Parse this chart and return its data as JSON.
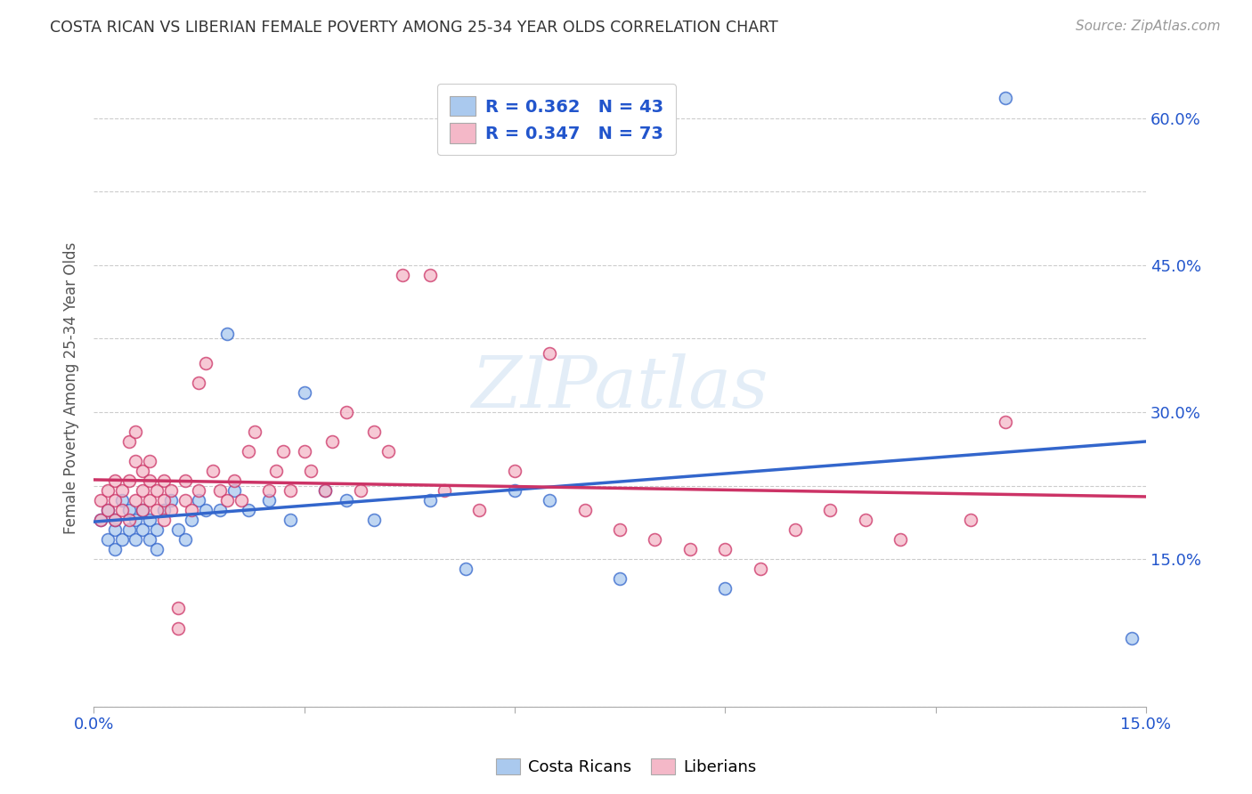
{
  "title": "COSTA RICAN VS LIBERIAN FEMALE POVERTY AMONG 25-34 YEAR OLDS CORRELATION CHART",
  "source": "Source: ZipAtlas.com",
  "ylabel": "Female Poverty Among 25-34 Year Olds",
  "xlim": [
    0.0,
    0.15
  ],
  "ylim": [
    0.0,
    0.65
  ],
  "xtick_pos": [
    0.0,
    0.03,
    0.06,
    0.09,
    0.12,
    0.15
  ],
  "xtick_labels": [
    "0.0%",
    "",
    "",
    "",
    "",
    "15.0%"
  ],
  "ytick_pos": [
    0.0,
    0.15,
    0.225,
    0.3,
    0.375,
    0.45,
    0.525,
    0.6
  ],
  "ytick_labels_right": [
    "",
    "15.0%",
    "",
    "30.0%",
    "",
    "45.0%",
    "",
    "60.0%"
  ],
  "grid_color": "#cccccc",
  "background_color": "#ffffff",
  "costa_rican_color": "#aac9ee",
  "liberian_color": "#f4b8c8",
  "costa_rican_line_color": "#3366cc",
  "liberian_line_color": "#cc3366",
  "legend_label_1": "R = 0.362   N = 43",
  "legend_label_2": "R = 0.347   N = 73",
  "legend_text_color": "#2255cc",
  "watermark": "ZIPatlas",
  "cr_x": [
    0.001,
    0.002,
    0.002,
    0.003,
    0.003,
    0.003,
    0.004,
    0.004,
    0.005,
    0.005,
    0.006,
    0.006,
    0.007,
    0.007,
    0.008,
    0.008,
    0.009,
    0.009,
    0.01,
    0.011,
    0.012,
    0.013,
    0.014,
    0.015,
    0.016,
    0.018,
    0.019,
    0.02,
    0.022,
    0.025,
    0.028,
    0.03,
    0.033,
    0.036,
    0.04,
    0.048,
    0.053,
    0.06,
    0.065,
    0.075,
    0.09,
    0.13,
    0.148
  ],
  "cr_y": [
    0.19,
    0.17,
    0.2,
    0.16,
    0.18,
    0.19,
    0.17,
    0.21,
    0.18,
    0.2,
    0.17,
    0.19,
    0.18,
    0.2,
    0.17,
    0.19,
    0.16,
    0.18,
    0.2,
    0.21,
    0.18,
    0.17,
    0.19,
    0.21,
    0.2,
    0.2,
    0.38,
    0.22,
    0.2,
    0.21,
    0.19,
    0.32,
    0.22,
    0.21,
    0.19,
    0.21,
    0.14,
    0.22,
    0.21,
    0.13,
    0.12,
    0.62,
    0.07
  ],
  "lib_x": [
    0.001,
    0.001,
    0.002,
    0.002,
    0.003,
    0.003,
    0.003,
    0.004,
    0.004,
    0.005,
    0.005,
    0.005,
    0.006,
    0.006,
    0.006,
    0.007,
    0.007,
    0.007,
    0.008,
    0.008,
    0.008,
    0.009,
    0.009,
    0.01,
    0.01,
    0.01,
    0.011,
    0.011,
    0.012,
    0.012,
    0.013,
    0.013,
    0.014,
    0.015,
    0.015,
    0.016,
    0.017,
    0.018,
    0.019,
    0.02,
    0.021,
    0.022,
    0.023,
    0.025,
    0.026,
    0.027,
    0.028,
    0.03,
    0.031,
    0.033,
    0.034,
    0.036,
    0.038,
    0.04,
    0.042,
    0.044,
    0.048,
    0.05,
    0.055,
    0.06,
    0.065,
    0.07,
    0.075,
    0.08,
    0.085,
    0.09,
    0.095,
    0.1,
    0.105,
    0.11,
    0.115,
    0.125,
    0.13
  ],
  "lib_y": [
    0.21,
    0.19,
    0.22,
    0.2,
    0.19,
    0.21,
    0.23,
    0.2,
    0.22,
    0.27,
    0.23,
    0.19,
    0.21,
    0.25,
    0.28,
    0.2,
    0.24,
    0.22,
    0.21,
    0.23,
    0.25,
    0.2,
    0.22,
    0.19,
    0.21,
    0.23,
    0.2,
    0.22,
    0.08,
    0.1,
    0.21,
    0.23,
    0.2,
    0.22,
    0.33,
    0.35,
    0.24,
    0.22,
    0.21,
    0.23,
    0.21,
    0.26,
    0.28,
    0.22,
    0.24,
    0.26,
    0.22,
    0.26,
    0.24,
    0.22,
    0.27,
    0.3,
    0.22,
    0.28,
    0.26,
    0.44,
    0.44,
    0.22,
    0.2,
    0.24,
    0.36,
    0.2,
    0.18,
    0.17,
    0.16,
    0.16,
    0.14,
    0.18,
    0.2,
    0.19,
    0.17,
    0.19,
    0.29
  ]
}
